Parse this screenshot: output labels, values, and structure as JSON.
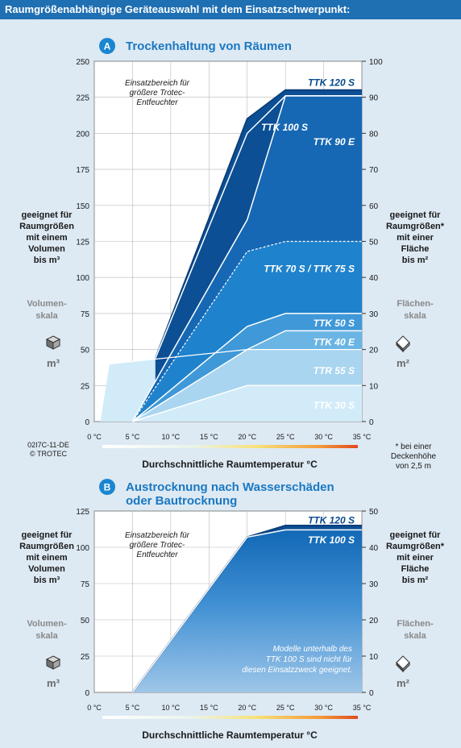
{
  "header": {
    "title": "Raumgrößenabhängige Geräteauswahl mit dem Einsatzschwerpunkt:"
  },
  "colors": {
    "header": "#1f6fb3",
    "title": "#1a78c2",
    "badge": "#1a86d0",
    "band_dark": "#0c4f94",
    "band_mid": "#1668b4",
    "band_blue": "#1f82cc",
    "band_light": "#6ab5e3",
    "band_pale": "#a9d5f0",
    "band_palest": "#d2ebf9",
    "plot_bg": "#ffffff",
    "grid": "#b8b8b8"
  },
  "labels": {
    "left_axis": [
      "geeignet für",
      "Raumgrößen",
      "mit einem",
      "Volumen",
      "bis m³"
    ],
    "left_scale": [
      "Volumen-",
      "skala"
    ],
    "left_unit": "m³",
    "right_axis": [
      "geeignet für",
      "Raumgrößen*",
      "mit einer",
      "Fläche",
      "bis m²"
    ],
    "right_scale": [
      "Flächen-",
      "skala"
    ],
    "right_unit": "m²",
    "xlabel": "Durchschnittliche Raumtemperatur °C",
    "code": [
      "02I7C-11-DE",
      "© TROTEC"
    ],
    "footnote": [
      "* bei einer",
      "Deckenhöhe",
      "von 2,5 m"
    ],
    "range_note": [
      "Einsatzbereich für",
      "größere Trotec-",
      "Entfeuchter"
    ],
    "note_b": [
      "Modelle unterhalb des",
      "TTK 100 S sind nicht für",
      "diesen Einsatzzweck geeignet."
    ]
  },
  "chart_data": [
    {
      "type": "area",
      "badge": "A",
      "title": "Trockenhaltung von Räumen",
      "xlabel": "Durchschnittliche Raumtemperatur °C",
      "x_ticks": [
        "0 °C",
        "5 °C",
        "10 °C",
        "15 °C",
        "20 °C",
        "25 °C",
        "30 °C",
        "35 °C"
      ],
      "xlim": [
        0,
        35
      ],
      "ylim": [
        0,
        250
      ],
      "y_ticks": [
        0,
        25,
        50,
        75,
        100,
        125,
        150,
        175,
        200,
        225,
        250
      ],
      "ylim_right": [
        0,
        100
      ],
      "y_ticks_right": [
        0,
        10,
        20,
        30,
        40,
        50,
        60,
        70,
        80,
        90,
        100
      ],
      "grid": true,
      "series": [
        {
          "name": "TTK 120 S",
          "x": [
            8,
            20,
            25,
            35
          ],
          "y": [
            44,
            210,
            230,
            230
          ]
        },
        {
          "name": "TTK 100 S",
          "x": [
            8,
            20,
            25,
            35
          ],
          "y": [
            44,
            200,
            226,
            226
          ]
        },
        {
          "name": "TTK 90 E",
          "x": [
            5,
            20,
            25,
            35
          ],
          "y": [
            0,
            140,
            226,
            226
          ]
        },
        {
          "name": "TTK 70 S / TTK 75 S",
          "x": [
            5,
            20,
            25,
            35
          ],
          "y": [
            0,
            118,
            125,
            125
          ]
        },
        {
          "name": "TTK 50 S",
          "x": [
            5,
            20,
            25,
            35
          ],
          "y": [
            0,
            66,
            75,
            75
          ]
        },
        {
          "name": "TTK 40 E",
          "x": [
            5,
            20,
            25,
            35
          ],
          "y": [
            0,
            50,
            63,
            63
          ]
        },
        {
          "name": "TTR 55 S",
          "x": [
            2,
            20,
            35
          ],
          "y": [
            40,
            50,
            50
          ]
        },
        {
          "name": "TTK 30 S",
          "x": [
            5,
            20,
            35
          ],
          "y": [
            0,
            25,
            25
          ]
        }
      ]
    },
    {
      "type": "area",
      "badge": "B",
      "title": [
        "Austrocknung nach Wasserschäden",
        "oder Bautrocknung"
      ],
      "xlabel": "Durchschnittliche Raumtemperatur °C",
      "x_ticks": [
        "0 °C",
        "5 °C",
        "10 °C",
        "15 °C",
        "20 °C",
        "25 °C",
        "30 °C",
        "35 °C"
      ],
      "xlim": [
        0,
        35
      ],
      "ylim": [
        0,
        125
      ],
      "y_ticks": [
        0,
        25,
        50,
        75,
        100,
        125
      ],
      "ylim_right": [
        0,
        50
      ],
      "y_ticks_right": [
        0,
        10,
        20,
        30,
        40,
        50
      ],
      "grid": true,
      "series": [
        {
          "name": "TTK 120 S",
          "x": [
            5,
            20,
            25,
            35
          ],
          "y": [
            0,
            107,
            115,
            115
          ]
        },
        {
          "name": "TTK 100 S",
          "x": [
            5,
            20,
            25,
            35
          ],
          "y": [
            0,
            107,
            112,
            112
          ]
        }
      ]
    }
  ]
}
